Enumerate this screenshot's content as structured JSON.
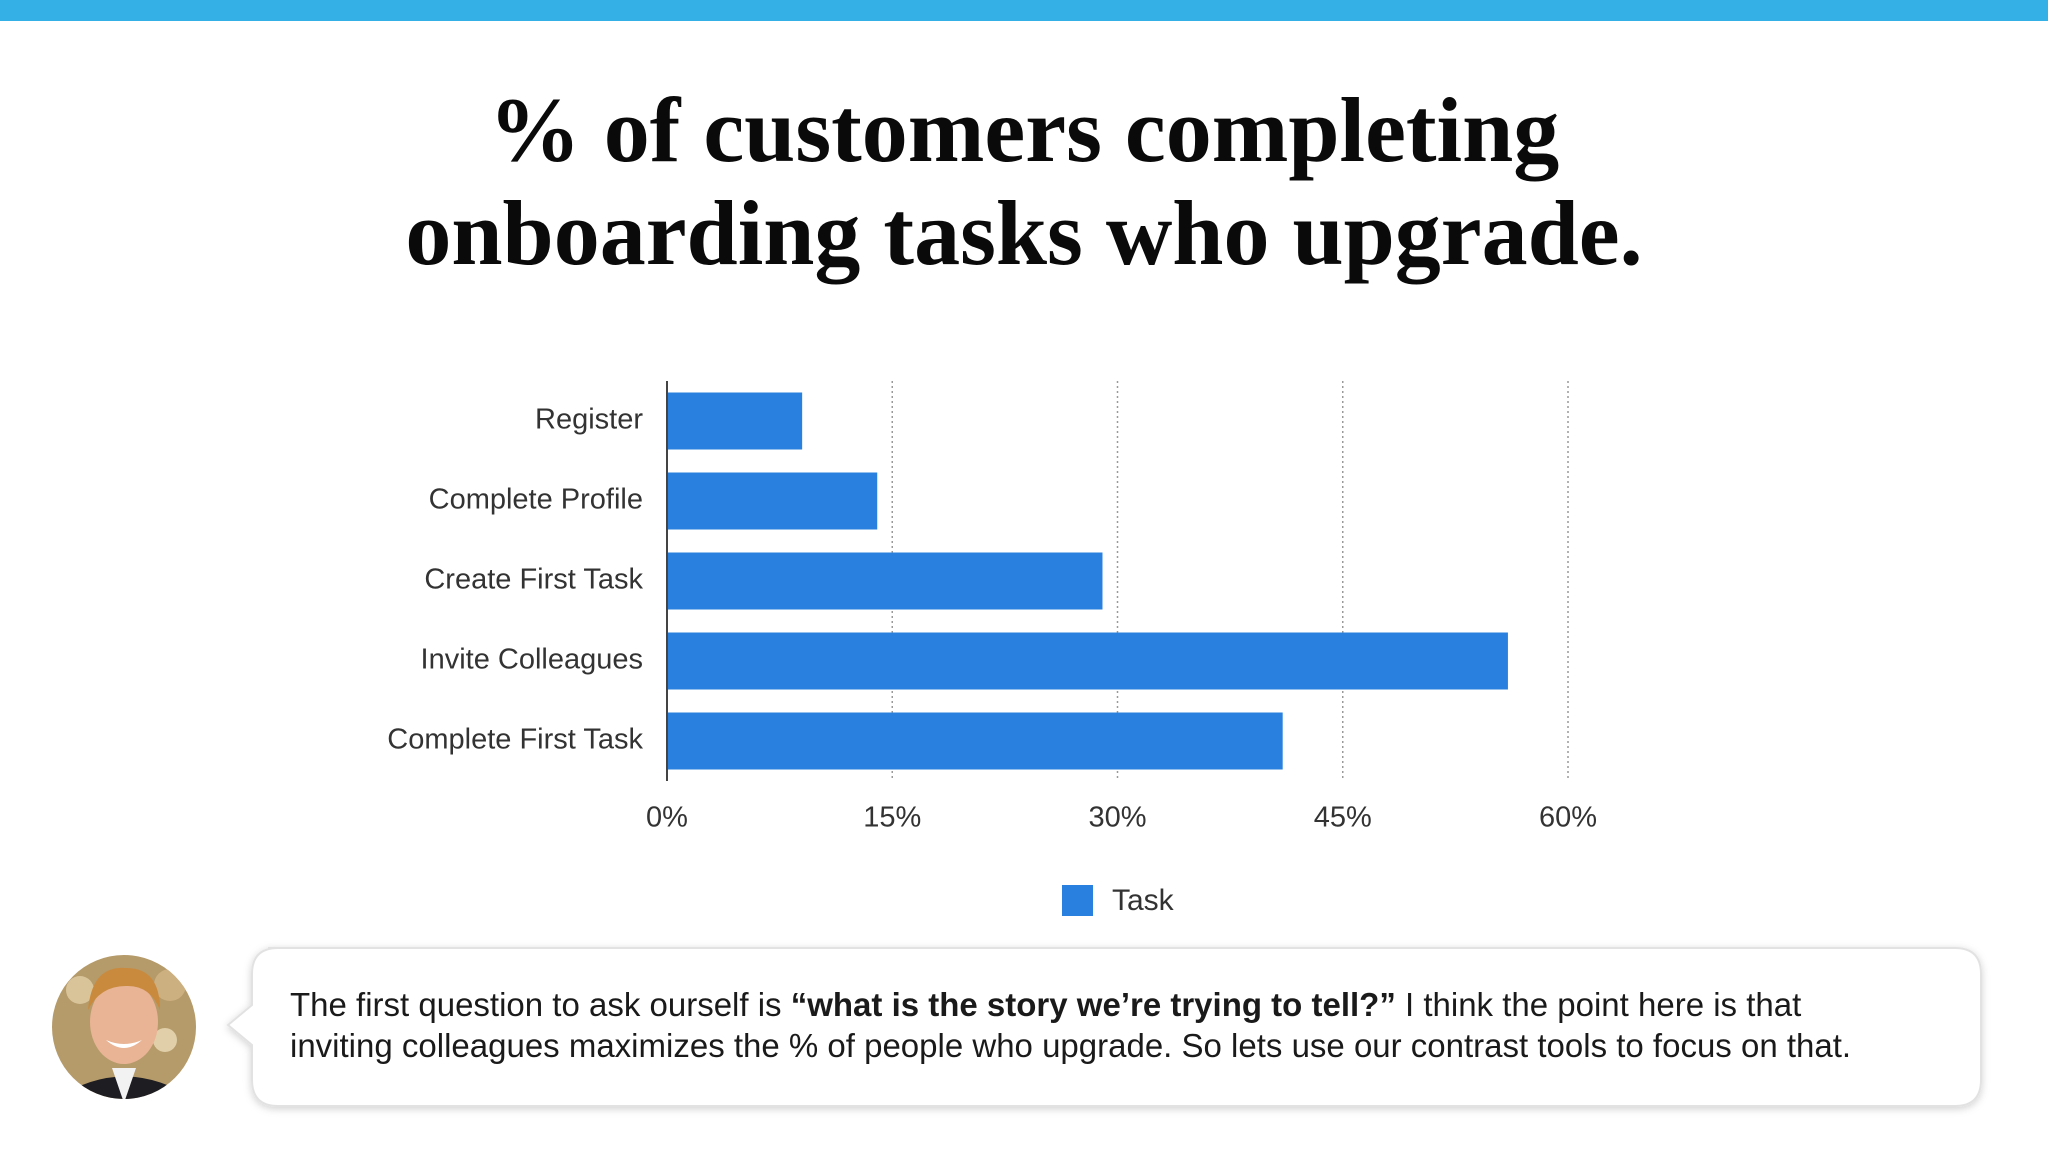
{
  "chart_data": {
    "type": "bar",
    "orientation": "horizontal",
    "title": [
      "% of customers completing",
      "onboarding tasks who upgrade."
    ],
    "categories": [
      "Register",
      "Complete Profile",
      "Create First Task",
      "Invite Colleagues",
      "Complete First Task"
    ],
    "series": [
      {
        "name": "Task",
        "color": "#2a80de",
        "values": [
          9,
          14,
          29,
          56,
          41
        ]
      }
    ],
    "xlim": [
      0,
      60
    ],
    "xticks": [
      {
        "value": 0,
        "label": "0%"
      },
      {
        "value": 15,
        "label": "15%"
      },
      {
        "value": 30,
        "label": "30%"
      },
      {
        "value": 45,
        "label": "45%"
      },
      {
        "value": 60,
        "label": "60%"
      }
    ],
    "grid": true,
    "legend": "bottom"
  },
  "caption": {
    "lines": [
      [
        {
          "text": "The first question to ask ourself is ",
          "bold": false
        },
        {
          "text": "“what is the story we’re trying to tell?”",
          "bold": true
        },
        {
          "text": " I think the point here is that",
          "bold": false
        }
      ],
      [
        {
          "text": "inviting colleagues maximizes the % of people who upgrade. So lets use our contrast tools to focus on that.",
          "bold": false
        }
      ]
    ]
  }
}
